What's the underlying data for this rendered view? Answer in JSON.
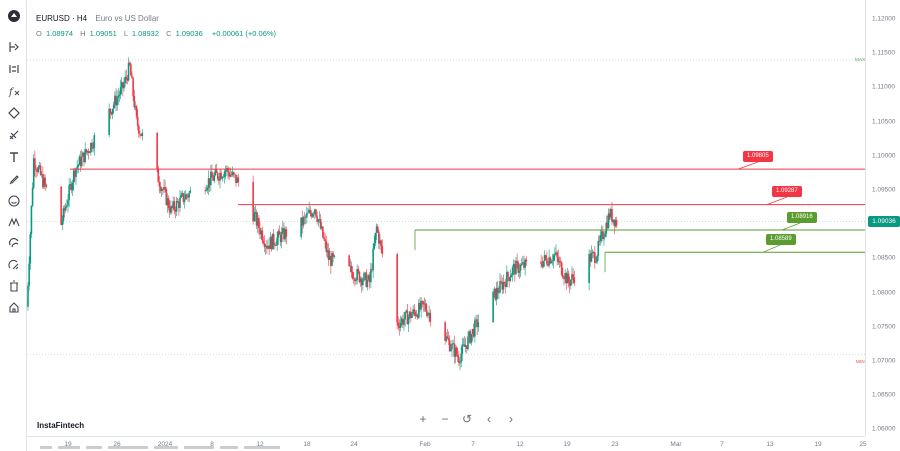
{
  "header": {
    "symbol": "EURUSD · H4",
    "description": "Euro vs US Dollar"
  },
  "ohlc": {
    "o_label": "O",
    "o_value": "1.08974",
    "h_label": "H",
    "h_value": "1.09051",
    "l_label": "L",
    "l_value": "1.08932",
    "c_label": "C",
    "c_value": "1.09036",
    "change": "+0.00061 (+0.06%)"
  },
  "toolbar": {
    "tools": [
      "logo-icon",
      "crosshair-icon",
      "trend-line-icon",
      "fib-icon",
      "pattern-icon",
      "projection-icon",
      "text-icon",
      "brush-icon",
      "emoji-icon",
      "measure-icon",
      "magnet-icon",
      "lock-drawings-icon",
      "trash-icon",
      "home-icon"
    ]
  },
  "price_axis": {
    "ticks": [
      "1.12000",
      "1.11500",
      "1.11000",
      "1.10500",
      "1.10000",
      "1.09500",
      "1.09000",
      "1.08500",
      "1.08000",
      "1.07500",
      "1.07000",
      "1.06500",
      "1.06000"
    ],
    "current_price": "1.09036"
  },
  "time_axis": {
    "ticks": [
      "19",
      "26",
      "2024",
      "8",
      "12",
      "18",
      "24",
      "Feb",
      "7",
      "12",
      "19",
      "23",
      "Mar",
      "7",
      "13",
      "19",
      "25"
    ]
  },
  "levels": [
    {
      "label": "1.09805",
      "type": "resistance"
    },
    {
      "label": "1.09287",
      "type": "resistance"
    },
    {
      "label": "1.08916",
      "type": "support"
    },
    {
      "label": "1.08589",
      "type": "support"
    }
  ],
  "markers": {
    "max": "MAX",
    "min": "MIN"
  },
  "nav": {
    "zoom_in": "+",
    "zoom_out": "−",
    "reset": "↺",
    "scroll_left": "‹",
    "scroll_right": "›"
  },
  "brand": "InstaFintech",
  "colors": {
    "bull": "#089981",
    "bear": "#f23645",
    "resistance": "#f23645",
    "support": "#5b9b2f"
  },
  "chart_data": {
    "type": "candlestick",
    "x_start": "2023-12-13",
    "x_end": "2024-03-25",
    "ylim": [
      1.06,
      1.12
    ],
    "grid": false,
    "horizontal_levels": [
      1.09805,
      1.09287,
      1.08916,
      1.08589
    ],
    "anchors": [
      {
        "x": "2023-12-13",
        "close": 1.078
      },
      {
        "x": "2023-12-14",
        "close": 1.0995
      },
      {
        "x": "2023-12-18",
        "close": 1.09
      },
      {
        "x": "2023-12-20",
        "close": 1.098
      },
      {
        "x": "2023-12-22",
        "close": 1.101
      },
      {
        "x": "2023-12-27",
        "close": 1.11
      },
      {
        "x": "2023-12-28",
        "close": 1.113
      },
      {
        "x": "2023-12-29",
        "close": 1.105
      },
      {
        "x": "2024-01-03",
        "close": 1.092
      },
      {
        "x": "2024-01-05",
        "close": 1.094
      },
      {
        "x": "2024-01-11",
        "close": 1.098
      },
      {
        "x": "2024-01-13",
        "close": 1.096
      },
      {
        "x": "2024-01-17",
        "close": 1.087
      },
      {
        "x": "2024-01-22",
        "close": 1.09
      },
      {
        "x": "2024-01-24",
        "close": 1.0925
      },
      {
        "x": "2024-01-26",
        "close": 1.085
      },
      {
        "x": "2024-02-01",
        "close": 1.0815
      },
      {
        "x": "2024-02-02",
        "close": 1.0895
      },
      {
        "x": "2024-02-05",
        "close": 1.0755
      },
      {
        "x": "2024-02-09",
        "close": 1.078
      },
      {
        "x": "2024-02-14",
        "close": 1.0705
      },
      {
        "x": "2024-02-18",
        "close": 1.078
      },
      {
        "x": "2024-02-22",
        "close": 1.0835
      },
      {
        "x": "2024-02-26",
        "close": 1.0845
      },
      {
        "x": "2024-02-28",
        "close": 1.0855
      },
      {
        "x": "2024-03-01",
        "close": 1.0815
      },
      {
        "x": "2024-03-04",
        "close": 1.085
      },
      {
        "x": "2024-03-05",
        "close": 1.0855
      },
      {
        "x": "2024-03-07",
        "close": 1.0915
      },
      {
        "x": "2024-03-08",
        "close": 1.09036
      }
    ]
  }
}
